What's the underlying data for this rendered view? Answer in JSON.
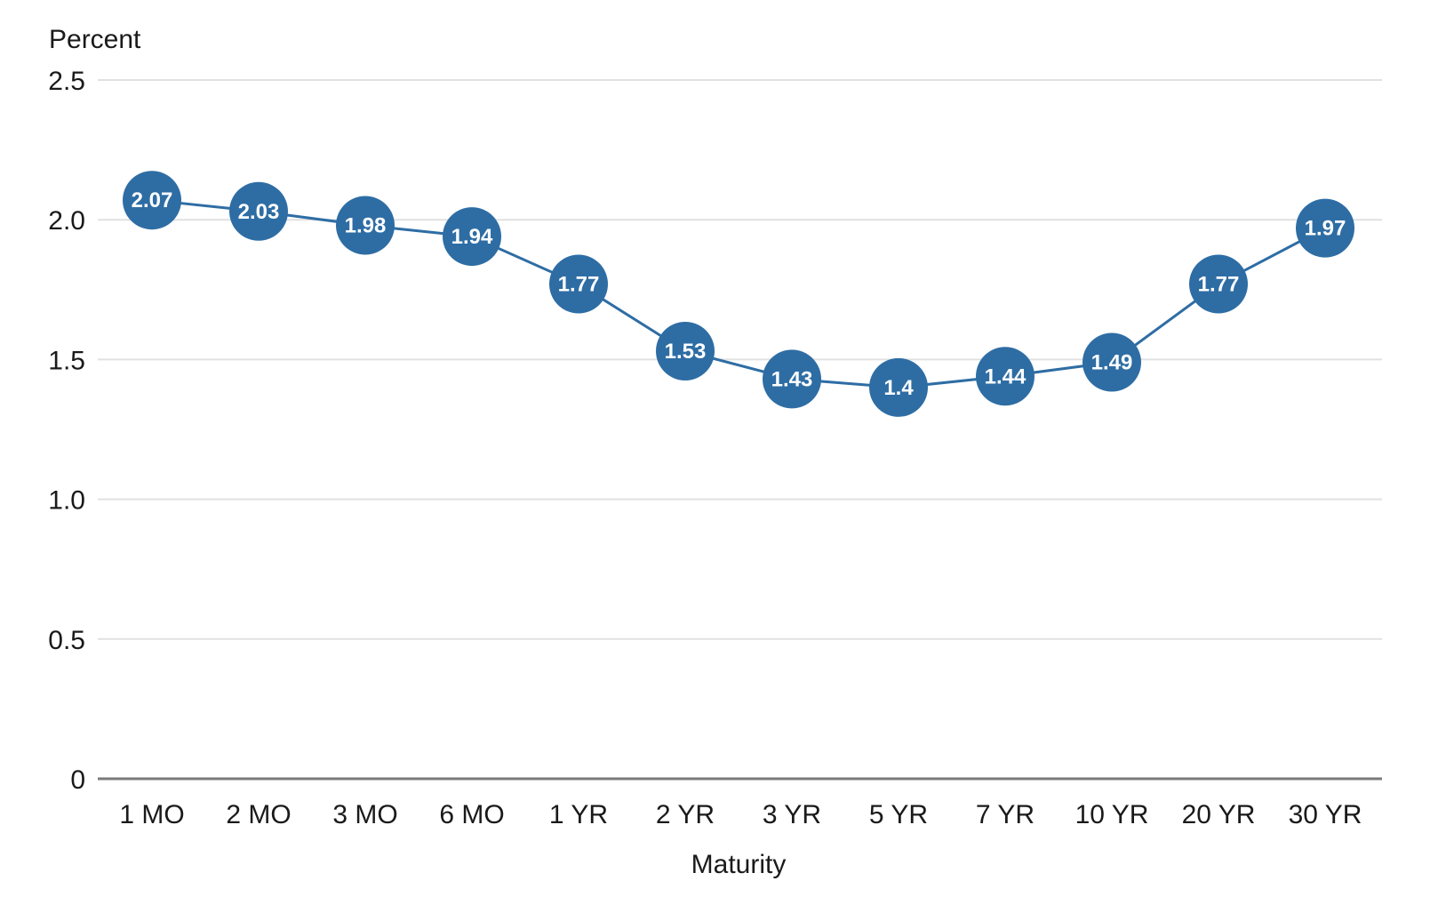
{
  "chart_data": {
    "type": "line",
    "title": "",
    "xlabel": "Maturity",
    "ylabel": "Percent",
    "ylim": [
      0,
      2.5
    ],
    "yticks": [
      0,
      0.5,
      1.0,
      1.5,
      2.0,
      2.5
    ],
    "ytick_labels": [
      "0",
      "0.5",
      "1.0",
      "1.5",
      "2.0",
      "2.5"
    ],
    "categories": [
      "1 MO",
      "2 MO",
      "3 MO",
      "6 MO",
      "1 YR",
      "2 YR",
      "3 YR",
      "5 YR",
      "7 YR",
      "10 YR",
      "20 YR",
      "30 YR"
    ],
    "values": [
      2.07,
      2.03,
      1.98,
      1.94,
      1.77,
      1.53,
      1.43,
      1.4,
      1.44,
      1.49,
      1.77,
      1.97
    ],
    "data_labels": [
      "2.07",
      "2.03",
      "1.98",
      "1.94",
      "1.77",
      "1.53",
      "1.43",
      "1.4",
      "1.44",
      "1.49",
      "1.77",
      "1.97"
    ],
    "grid": true,
    "legend": "none",
    "series_color": "#2e6da4",
    "label_color": "#ffffff"
  }
}
